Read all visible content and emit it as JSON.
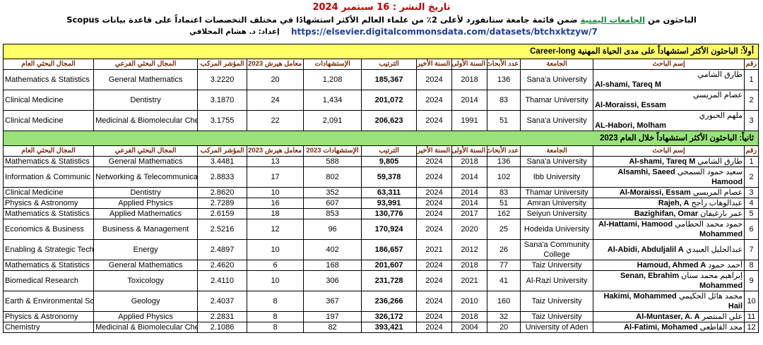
{
  "header": {
    "date": "تاريخ النشر : 16 سبتمبر 2024",
    "title_before": "الباحثون من",
    "title_highlight": "الجامعات اليمنية",
    "title_after": "ضمن قائمة جامعة ستانفورد لأعلى 2٪ من علماء العالم الأكثر استشهادًا في مختلف التخصصات اعتماداً على قاعدة بيانات Scopus",
    "prepared_by": "إعداد: د. هشام المخلافي",
    "url": "https://elsevier.digitalcommonsdata.com/datasets/btchxktzyw/7"
  },
  "sections": [
    {
      "title": "أولاً: الباحثون الأكثر استشهاداً على مدى الحياة المهنية Career-long",
      "columns": [
        "رقم",
        "إسم الباحث",
        "الجامعة",
        "عدد الأبحاث",
        "السنة الأولى",
        "السنة الأخيرة",
        "الترتيب",
        "الإستشهادات",
        "معامل هيرش 2023",
        "المؤشر المركب",
        "المجال البحثي الفرعي",
        "المجال البحثي العام"
      ],
      "rows": [
        [
          "1",
          "طارق الشامي",
          "Al-shami, Tareq M",
          "Sana'a University",
          "136",
          "2018",
          "2024",
          "185,367",
          "1,208",
          "20",
          "3.2220",
          "General Mathematics",
          "Mathematics & Statistics"
        ],
        [
          "2",
          "عصام المريسي",
          "Al-Moraissi, Essam",
          "Thamar University",
          "83",
          "2014",
          "2024",
          "201,072",
          "1,434",
          "24",
          "3.1870",
          "Dentistry",
          "Clinical Medicine"
        ],
        [
          "3",
          "ملهم الحبوري",
          "AL-Habori, Molham",
          "Sana'a University",
          "51",
          "1991",
          "2024",
          "206,623",
          "2,091",
          "22",
          "3.1755",
          "Medicinal & Biomolecular Che",
          "Clinical Medicine"
        ]
      ]
    },
    {
      "title": "ثانياً: الباحثون الأكثر استشهاداً خلال العام 2023",
      "columns": [
        "رقم",
        "إسم الباحث",
        "الجامعة",
        "عدد الأبحاث",
        "السنة الأولى",
        "السنة الأخيرة",
        "الترتيب",
        "الإستشهادات 2023",
        "معامل هيرش 2023",
        "المؤشر المركب",
        "المجال البحثي الفرعي",
        "المجال البحثي العام"
      ],
      "rows": [
        [
          "1",
          "طارق الشامي",
          "Al-shami, Tareq M",
          "Sana'a University",
          "136",
          "2018",
          "2024",
          "9,805",
          "588",
          "13",
          "3.4481",
          "General Mathematics",
          "Mathematics & Statistics"
        ],
        [
          "2",
          "سعيد حمود السمحي",
          "Alsamhi, Saeed Hamood",
          "Ibb University",
          "102",
          "2014",
          "2024",
          "59,378",
          "802",
          "17",
          "2.8833",
          "Networking & Telecommunica",
          "Information & Communic"
        ],
        [
          "3",
          "عصام المريسي",
          "Al-Moraissi, Essam",
          "Thamar University",
          "83",
          "2014",
          "2024",
          "63,311",
          "352",
          "10",
          "2.8620",
          "Dentistry",
          "Clinical Medicine"
        ],
        [
          "4",
          "عبدالوهاب راجح",
          "Rajeh, A",
          "Amran University",
          "51",
          "2014",
          "2024",
          "93,991",
          "607",
          "16",
          "2.7289",
          "Applied Physics",
          "Physics & Astronomy"
        ],
        [
          "5",
          "عمر بازغيفان",
          "Bazighifan, Omar",
          "Seiyun University",
          "162",
          "2017",
          "2024",
          "130,776",
          "853",
          "18",
          "2.6159",
          "Applied Mathematics",
          "Mathematics & Statistics"
        ],
        [
          "6",
          "حمود محمد الحطامي",
          "Al-Hattami, Hamood Mohammed",
          "Hodeida University",
          "25",
          "2020",
          "2024",
          "170,924",
          "96",
          "12",
          "2.5216",
          "Business & Management",
          "Economics & Business"
        ],
        [
          "7",
          "عبدالجليل العبيدي",
          "Al-Abidi, Abduljalil A",
          "Sana'a Community College",
          "26",
          "2012",
          "2021",
          "186,657",
          "402",
          "10",
          "2.4897",
          "Energy",
          "Enabling & Strategic Tech"
        ],
        [
          "8",
          "أحمد حمود",
          "Hamoud, Ahmed A",
          "Taiz University",
          "77",
          "2018",
          "2024",
          "201,607",
          "168",
          "6",
          "2.4620",
          "General Mathematics",
          "Mathematics & Statistics"
        ],
        [
          "9",
          "إبراهيم محمد سنان",
          "Senan, Ebrahim Mohammed",
          "Al-Razi University",
          "41",
          "2021",
          "2024",
          "231,728",
          "306",
          "10",
          "2.4110",
          "Toxicology",
          "Biomedical Research"
        ],
        [
          "10",
          "محمد هائل الحكيمي",
          "Hakimi, Mohammed Hail",
          "Taiz University",
          "160",
          "2010",
          "2024",
          "236,266",
          "367",
          "8",
          "2.4037",
          "Geology",
          "Earth & Environmental Sc"
        ],
        [
          "11",
          "علي المنتصر",
          "Al-Muntaser, A. A",
          "Taiz University",
          "32",
          "2018",
          "2024",
          "326,172",
          "197",
          "8",
          "2.2831",
          "Applied Physics",
          "Physics & Astronomy"
        ],
        [
          "12",
          "مجد القاطعي",
          "Al-Fatimi, Mohamed",
          "University of Aden",
          "20",
          "2004",
          "2024",
          "393,421",
          "82",
          "8",
          "2.1086",
          "Medicinal & Biomolecular Che",
          "Chemistry"
        ]
      ]
    }
  ]
}
